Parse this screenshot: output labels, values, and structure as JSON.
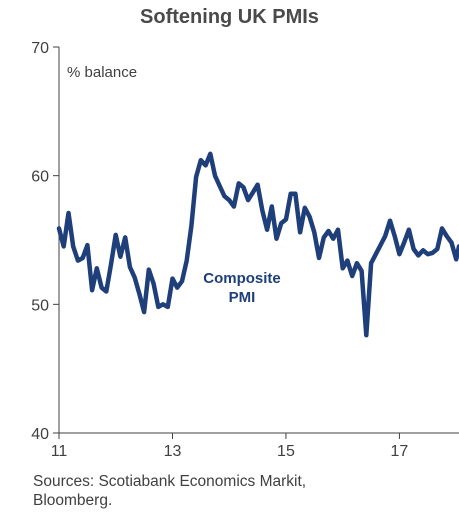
{
  "chart_data": {
    "type": "line",
    "title": "Softening UK PMIs",
    "ylabel": "% balance",
    "ylim": [
      40,
      70
    ],
    "yticks": [
      "40",
      "50",
      "60",
      "70"
    ],
    "xlim": [
      2011.0,
      2018.05
    ],
    "xticks": [
      {
        "value": 2011,
        "label": "11"
      },
      {
        "value": 2013,
        "label": "13"
      },
      {
        "value": 2015,
        "label": "15"
      },
      {
        "value": 2017,
        "label": "17"
      }
    ],
    "grid": false,
    "annotation": [
      "Composite",
      "PMI"
    ],
    "series": [
      {
        "name": "Composite PMI",
        "color": "#1f3f7a",
        "x": [
          2011.0,
          2011.083,
          2011.167,
          2011.25,
          2011.333,
          2011.417,
          2011.5,
          2011.583,
          2011.667,
          2011.75,
          2011.833,
          2011.917,
          2012.0,
          2012.083,
          2012.167,
          2012.25,
          2012.333,
          2012.417,
          2012.5,
          2012.583,
          2012.667,
          2012.75,
          2012.833,
          2012.917,
          2013.0,
          2013.083,
          2013.167,
          2013.25,
          2013.333,
          2013.417,
          2013.5,
          2013.583,
          2013.667,
          2013.75,
          2013.833,
          2013.917,
          2014.0,
          2014.083,
          2014.167,
          2014.25,
          2014.333,
          2014.417,
          2014.5,
          2014.583,
          2014.667,
          2014.75,
          2014.833,
          2014.917,
          2015.0,
          2015.083,
          2015.167,
          2015.25,
          2015.333,
          2015.417,
          2015.5,
          2015.583,
          2015.667,
          2015.75,
          2015.833,
          2015.917,
          2016.0,
          2016.083,
          2016.167,
          2016.25,
          2016.333,
          2016.417,
          2016.5,
          2016.583,
          2016.667,
          2016.75,
          2016.833,
          2016.917,
          2017.0,
          2017.083,
          2017.167,
          2017.25,
          2017.333,
          2017.417,
          2017.5,
          2017.583,
          2017.667,
          2017.75,
          2017.833,
          2017.917,
          2018.0,
          2018.05
        ],
        "y": [
          55.9,
          54.5,
          57.1,
          54.5,
          53.4,
          53.6,
          54.6,
          51.1,
          52.8,
          51.3,
          51.0,
          53.1,
          55.4,
          53.7,
          55.2,
          52.9,
          52.1,
          50.8,
          49.4,
          52.7,
          51.6,
          49.8,
          50.0,
          49.8,
          52.0,
          51.3,
          51.8,
          53.4,
          56.1,
          59.9,
          61.2,
          60.8,
          61.7,
          60.0,
          59.2,
          58.4,
          58.1,
          57.6,
          59.4,
          59.1,
          58.1,
          58.7,
          59.3,
          57.3,
          55.8,
          57.6,
          55.1,
          56.3,
          56.6,
          58.6,
          58.6,
          55.6,
          57.5,
          56.8,
          55.6,
          53.6,
          55.2,
          55.7,
          55.1,
          55.8,
          52.8,
          53.4,
          52.2,
          53.2,
          52.6,
          47.6,
          53.2,
          53.9,
          54.6,
          55.3,
          56.5,
          55.3,
          53.9,
          54.8,
          55.8,
          54.3,
          53.8,
          54.2,
          53.9,
          54.0,
          54.3,
          55.9,
          55.3,
          54.8,
          53.5,
          54.5
        ]
      }
    ]
  },
  "source_lines": [
    "Sources: Scotiabank Economics Markit,",
    "Bloomberg."
  ]
}
